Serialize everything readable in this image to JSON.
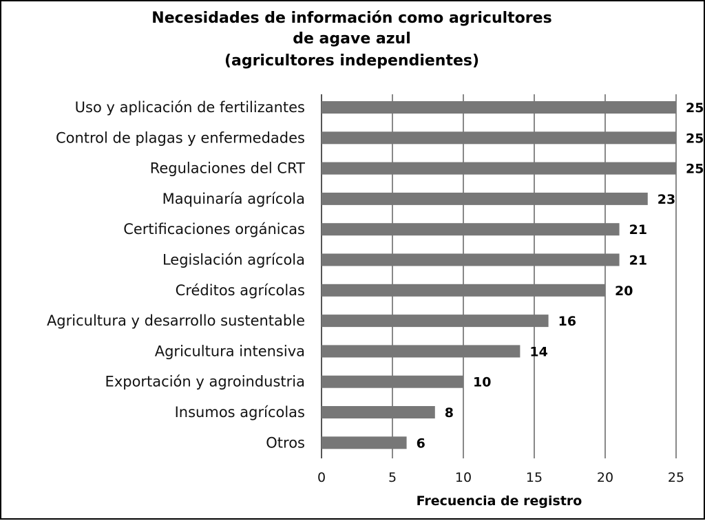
{
  "chart_data": {
    "type": "bar",
    "orientation": "horizontal",
    "title": [
      "Necesidades de información como agricultores",
      "de agave azul",
      "(agricultores independientes)"
    ],
    "xlabel": "Frecuencia de registro",
    "ylabel": "",
    "xlim": [
      0,
      25
    ],
    "xticks": [
      0,
      5,
      10,
      15,
      20,
      25
    ],
    "grid": true,
    "legend": "none",
    "categories": [
      "Uso y aplicación de fertilizantes",
      "Control de plagas y enfermedades",
      "Regulaciones del CRT",
      "Maquinaría agrícola",
      "Certificaciones orgánicas",
      "Legislación agrícola",
      "Créditos agrícolas",
      "Agricultura y desarrollo sustentable",
      "Agricultura intensiva",
      "Exportación y agroindustria",
      "Insumos agrícolas",
      "Otros"
    ],
    "values": [
      25,
      25,
      25,
      23,
      21,
      21,
      20,
      16,
      14,
      10,
      8,
      6
    ],
    "colors": {
      "bar": "#777777",
      "grid": "#888888",
      "axis": "#555555",
      "border": "#000000"
    }
  }
}
